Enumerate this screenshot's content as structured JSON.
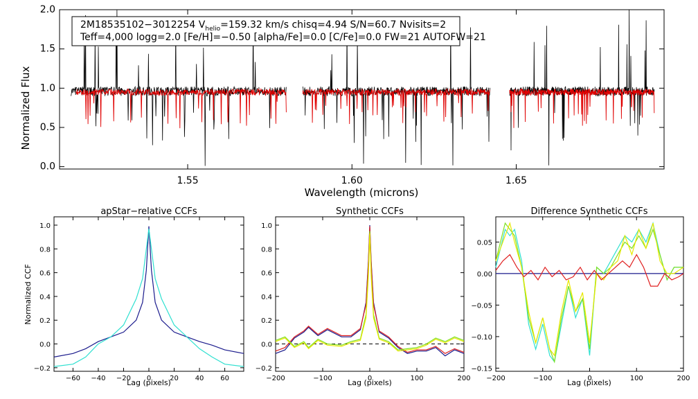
{
  "info_box": {
    "line1_prefix": "2M18535102−3012254  V",
    "line1_sub": "helio",
    "line1_suffix": "=159.32 km/s  chisq=4.94  S/N=60.7  Nvisits=2",
    "line2": "Teff=4,000 logg=2.0 [Fe/H]=−0.50 [alpha/Fe]=0.0 [C/Fe]=0.0 FW=21 AUTOFW=21"
  },
  "colors": {
    "observed": "#000000",
    "model": "#e00000",
    "navy": "#1a1a8c",
    "cyan": "#2ee0d0",
    "green": "#80e020",
    "yellow": "#e8e800",
    "red": "#e02020",
    "purple": "#a030a0",
    "dashed": "#000000"
  },
  "chart_data": [
    {
      "id": "spectrum",
      "type": "line",
      "title": "",
      "xlabel": "Wavelength (microns)",
      "ylabel": "Normalized Flux",
      "xlim": [
        1.511,
        1.695
      ],
      "ylim": [
        -0.03,
        2.0
      ],
      "xticks": [
        1.55,
        1.6,
        1.65
      ],
      "xtick_labels": [
        "1.55",
        "1.60",
        "1.65"
      ],
      "yticks": [
        0.0,
        0.5,
        1.0,
        1.5,
        2.0
      ],
      "ytick_labels": [
        "0.0",
        "0.5",
        "1.0",
        "1.5",
        "2.0"
      ],
      "segments": [
        [
          1.5145,
          1.58
        ],
        [
          1.585,
          1.642
        ],
        [
          1.648,
          1.692
        ]
      ],
      "series": [
        {
          "name": "observed",
          "baseline": 0.96
        },
        {
          "name": "model",
          "baseline": 0.95,
          "range": [
            1.516,
            1.692
          ]
        }
      ]
    },
    {
      "id": "apstar-ccf",
      "type": "line",
      "title": "apStar−relative CCFs",
      "xlabel": "Lag (pixels)",
      "ylabel": "Normalized CCF",
      "xlim": [
        -75,
        75
      ],
      "ylim": [
        -0.23,
        1.07
      ],
      "xticks": [
        -60,
        -40,
        -20,
        0,
        20,
        40,
        60
      ],
      "xtick_labels": [
        "−60",
        "−40",
        "−20",
        "0",
        "20",
        "40",
        "60"
      ],
      "yticks": [
        -0.2,
        0.0,
        0.2,
        0.4,
        0.6,
        0.8,
        1.0
      ],
      "ytick_labels": [
        "−0.2",
        "0.0",
        "0.2",
        "0.4",
        "0.6",
        "0.8",
        "1.0"
      ],
      "series": [
        {
          "name": "navy",
          "x": [
            -75,
            -60,
            -50,
            -40,
            -30,
            -20,
            -10,
            -5,
            -2,
            0,
            2,
            5,
            10,
            20,
            30,
            40,
            50,
            60,
            75
          ],
          "y": [
            -0.11,
            -0.08,
            -0.04,
            0.02,
            0.06,
            0.1,
            0.2,
            0.35,
            0.62,
            0.99,
            0.62,
            0.35,
            0.2,
            0.1,
            0.06,
            0.02,
            -0.01,
            -0.05,
            -0.08
          ]
        },
        {
          "name": "cyan",
          "x": [
            -75,
            -60,
            -50,
            -40,
            -30,
            -20,
            -10,
            -5,
            -2,
            0,
            2,
            5,
            10,
            20,
            30,
            40,
            50,
            60,
            75
          ],
          "y": [
            -0.19,
            -0.17,
            -0.11,
            0.0,
            0.06,
            0.16,
            0.38,
            0.55,
            0.8,
            0.97,
            0.8,
            0.55,
            0.38,
            0.16,
            0.06,
            -0.04,
            -0.11,
            -0.17,
            -0.19
          ]
        }
      ]
    },
    {
      "id": "synthetic-ccf",
      "type": "line",
      "title": "Synthetic CCFs",
      "xlabel": "Lag (pixels)",
      "ylabel": "",
      "xlim": [
        -200,
        200
      ],
      "ylim": [
        -0.23,
        1.07
      ],
      "xticks": [
        -200,
        -100,
        0,
        100,
        200
      ],
      "xtick_labels": [
        "−200",
        "−100",
        "0",
        "100",
        "200"
      ],
      "yticks": [
        -0.2,
        0.0,
        0.2,
        0.4,
        0.6,
        0.8,
        1.0
      ],
      "ytick_labels": [
        "−0.2",
        "0.0",
        "0.2",
        "0.4",
        "0.6",
        "0.8",
        "1.0"
      ],
      "reference_line": 0.0,
      "series": [
        {
          "name": "navy",
          "x": [
            -200,
            -180,
            -160,
            -140,
            -130,
            -110,
            -90,
            -60,
            -40,
            -20,
            -8,
            -3,
            0,
            3,
            8,
            20,
            40,
            60,
            80,
            100,
            120,
            140,
            160,
            180,
            200
          ],
          "y": [
            -0.08,
            -0.05,
            0.05,
            0.1,
            0.14,
            0.07,
            0.12,
            0.06,
            0.06,
            0.12,
            0.35,
            0.7,
            1.0,
            0.7,
            0.35,
            0.1,
            0.05,
            -0.03,
            -0.08,
            -0.06,
            -0.06,
            -0.03,
            -0.1,
            -0.05,
            -0.08
          ]
        },
        {
          "name": "red",
          "x": [
            -200,
            -180,
            -160,
            -140,
            -130,
            -110,
            -90,
            -60,
            -40,
            -20,
            -8,
            -3,
            0,
            3,
            8,
            20,
            40,
            60,
            80,
            100,
            120,
            140,
            160,
            180,
            200
          ],
          "y": [
            -0.06,
            -0.03,
            0.06,
            0.11,
            0.15,
            0.08,
            0.13,
            0.07,
            0.07,
            0.13,
            0.33,
            0.68,
            0.99,
            0.68,
            0.33,
            0.11,
            0.06,
            -0.02,
            -0.07,
            -0.05,
            -0.05,
            -0.02,
            -0.08,
            -0.04,
            -0.07
          ]
        },
        {
          "name": "green",
          "x": [
            -200,
            -180,
            -160,
            -140,
            -130,
            -110,
            -90,
            -60,
            -40,
            -20,
            -8,
            -3,
            0,
            3,
            8,
            20,
            40,
            60,
            80,
            100,
            120,
            140,
            160,
            180,
            200
          ],
          "y": [
            0.03,
            0.06,
            -0.02,
            0.02,
            -0.03,
            0.04,
            0.0,
            -0.01,
            0.02,
            0.04,
            0.25,
            0.6,
            0.95,
            0.6,
            0.25,
            0.05,
            0.02,
            -0.05,
            -0.04,
            -0.03,
            0.0,
            0.05,
            0.02,
            0.06,
            0.03
          ]
        },
        {
          "name": "yellow",
          "x": [
            -200,
            -180,
            -160,
            -140,
            -130,
            -110,
            -90,
            -60,
            -40,
            -20,
            -8,
            -3,
            0,
            3,
            8,
            20,
            40,
            60,
            80,
            100,
            120,
            140,
            160,
            180,
            200
          ],
          "y": [
            0.02,
            0.05,
            -0.03,
            0.01,
            -0.04,
            0.03,
            -0.01,
            -0.02,
            0.01,
            0.03,
            0.22,
            0.57,
            0.93,
            0.57,
            0.22,
            0.04,
            0.01,
            -0.06,
            -0.05,
            -0.04,
            -0.01,
            0.04,
            0.01,
            0.05,
            0.02
          ]
        }
      ]
    },
    {
      "id": "difference-ccf",
      "type": "line",
      "title": "Difference Synthetic CCFs",
      "xlabel": "Lag (pixels)",
      "ylabel": "",
      "xlim": [
        -200,
        200
      ],
      "ylim": [
        -0.155,
        0.09
      ],
      "xticks": [
        -200,
        -100,
        0,
        100,
        200
      ],
      "xtick_labels": [
        "−200",
        "−100",
        "0",
        "100",
        "200"
      ],
      "yticks": [
        -0.15,
        -0.1,
        -0.05,
        0.0,
        0.05
      ],
      "ytick_labels": [
        "−0.15",
        "−0.10",
        "−0.05",
        "0.00",
        "0.05"
      ],
      "series": [
        {
          "name": "navy",
          "x": [
            -200,
            200
          ],
          "y": [
            0.0,
            0.0
          ]
        },
        {
          "name": "cyan",
          "x": [
            -200,
            -180,
            -170,
            -160,
            -145,
            -130,
            -115,
            -100,
            -85,
            -75,
            -60,
            -45,
            -30,
            -15,
            0,
            15,
            30,
            45,
            60,
            75,
            90,
            105,
            120,
            135,
            150,
            165,
            180,
            200
          ],
          "y": [
            0.01,
            0.07,
            0.06,
            0.07,
            0.02,
            -0.08,
            -0.12,
            -0.08,
            -0.13,
            -0.14,
            -0.08,
            -0.02,
            -0.07,
            -0.04,
            -0.13,
            0.01,
            0.0,
            0.02,
            0.04,
            0.06,
            0.05,
            0.07,
            0.05,
            0.08,
            0.03,
            -0.01,
            0.01,
            0.01
          ]
        },
        {
          "name": "green",
          "x": [
            -200,
            -180,
            -170,
            -160,
            -145,
            -130,
            -115,
            -100,
            -85,
            -75,
            -60,
            -45,
            -30,
            -15,
            0,
            15,
            30,
            45,
            60,
            75,
            90,
            105,
            120,
            135,
            150,
            165,
            180,
            200
          ],
          "y": [
            0.02,
            0.08,
            0.07,
            0.06,
            0.01,
            -0.07,
            -0.11,
            -0.07,
            -0.12,
            -0.14,
            -0.07,
            -0.02,
            -0.06,
            -0.04,
            -0.12,
            0.01,
            0.0,
            0.01,
            0.03,
            0.05,
            0.04,
            0.06,
            0.04,
            0.07,
            0.03,
            -0.01,
            0.01,
            0.01
          ]
        },
        {
          "name": "yellow",
          "x": [
            -200,
            -180,
            -170,
            -160,
            -145,
            -130,
            -115,
            -100,
            -85,
            -75,
            -60,
            -45,
            -30,
            -15,
            0,
            15,
            30,
            45,
            60,
            75,
            90,
            105,
            120,
            135,
            150,
            165,
            180,
            200
          ],
          "y": [
            0.02,
            0.06,
            0.08,
            0.05,
            0.01,
            -0.06,
            -0.11,
            -0.07,
            -0.12,
            -0.13,
            -0.06,
            -0.01,
            -0.06,
            -0.03,
            -0.11,
            0.0,
            -0.01,
            0.01,
            0.02,
            0.06,
            0.03,
            0.07,
            0.04,
            0.08,
            0.02,
            0.0,
            0.0,
            0.01
          ]
        },
        {
          "name": "red",
          "x": [
            -200,
            -185,
            -170,
            -155,
            -140,
            -125,
            -110,
            -95,
            -80,
            -65,
            -50,
            -35,
            -20,
            -5,
            10,
            25,
            40,
            55,
            70,
            85,
            100,
            115,
            130,
            145,
            160,
            175,
            190,
            200
          ],
          "y": [
            0.005,
            0.02,
            0.03,
            0.01,
            -0.005,
            0.005,
            -0.01,
            0.01,
            -0.005,
            0.005,
            -0.01,
            -0.005,
            0.01,
            -0.01,
            0.005,
            -0.01,
            0.0,
            0.01,
            0.02,
            0.01,
            0.03,
            0.01,
            -0.02,
            -0.02,
            0.0,
            -0.01,
            -0.005,
            0.0
          ]
        }
      ]
    }
  ]
}
